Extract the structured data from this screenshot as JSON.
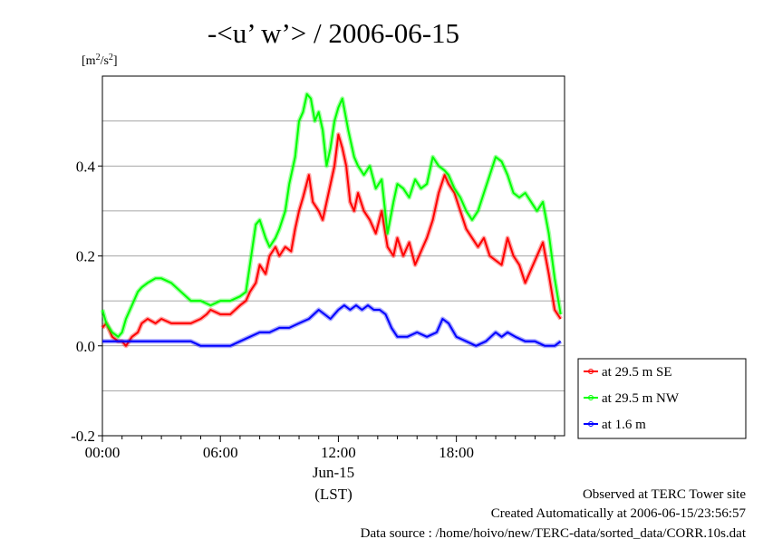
{
  "chart_data": {
    "type": "line",
    "title": "-<u’ w’> / 2006-06-15",
    "ylabel": "[m2/s2]",
    "ylabel_base": "[m",
    "ylabel_exp": "2",
    "ylabel_mid": "/s",
    "ylabel_exp2": "2",
    "ylabel_end": "]",
    "xlabel": "(LST)",
    "x_date_label": "Jun-15",
    "xlim": [
      0,
      23.5
    ],
    "ylim": [
      -0.2,
      0.6
    ],
    "y_ticks": [
      -0.2,
      0.0,
      0.2,
      0.4
    ],
    "y_tick_labels": [
      "-0.2",
      "0.0",
      "0.2",
      "0.4"
    ],
    "y_grid": [
      -0.1,
      0.0,
      0.1,
      0.2,
      0.3,
      0.4,
      0.5
    ],
    "x_ticks": [
      0,
      6,
      12,
      18
    ],
    "x_tick_labels": [
      "00:00",
      "06:00",
      "12:00",
      "18:00"
    ],
    "grid": true,
    "legend_position": "bottom-right outside",
    "series": [
      {
        "name": "at 29.5 m SE",
        "color": "#ff0000",
        "x": [
          0.0,
          0.2,
          0.5,
          0.8,
          1.0,
          1.2,
          1.5,
          1.8,
          2.0,
          2.3,
          2.7,
          3.0,
          3.5,
          4.0,
          4.5,
          5.0,
          5.3,
          5.5,
          6.0,
          6.5,
          7.0,
          7.3,
          7.5,
          7.8,
          8.0,
          8.3,
          8.5,
          8.8,
          9.0,
          9.3,
          9.6,
          9.8,
          10.0,
          10.2,
          10.5,
          10.7,
          11.0,
          11.2,
          11.5,
          11.8,
          12.0,
          12.2,
          12.4,
          12.6,
          12.8,
          13.0,
          13.3,
          13.6,
          13.9,
          14.2,
          14.5,
          14.8,
          15.0,
          15.3,
          15.6,
          15.9,
          16.2,
          16.5,
          16.8,
          17.1,
          17.4,
          17.6,
          17.9,
          18.2,
          18.5,
          18.8,
          19.1,
          19.4,
          19.7,
          20.0,
          20.3,
          20.6,
          20.9,
          21.2,
          21.5,
          21.8,
          22.1,
          22.4,
          22.7,
          23.0,
          23.3
        ],
        "y": [
          0.04,
          0.05,
          0.02,
          0.01,
          0.01,
          0.0,
          0.02,
          0.03,
          0.05,
          0.06,
          0.05,
          0.06,
          0.05,
          0.05,
          0.05,
          0.06,
          0.07,
          0.08,
          0.07,
          0.07,
          0.09,
          0.1,
          0.12,
          0.14,
          0.18,
          0.16,
          0.2,
          0.22,
          0.2,
          0.22,
          0.21,
          0.26,
          0.3,
          0.33,
          0.38,
          0.32,
          0.3,
          0.28,
          0.34,
          0.4,
          0.47,
          0.44,
          0.4,
          0.32,
          0.3,
          0.34,
          0.3,
          0.28,
          0.25,
          0.3,
          0.22,
          0.2,
          0.24,
          0.2,
          0.23,
          0.18,
          0.21,
          0.24,
          0.28,
          0.34,
          0.38,
          0.36,
          0.34,
          0.3,
          0.26,
          0.24,
          0.22,
          0.24,
          0.2,
          0.19,
          0.18,
          0.24,
          0.2,
          0.18,
          0.14,
          0.17,
          0.2,
          0.23,
          0.16,
          0.08,
          0.06
        ]
      },
      {
        "name": "at 29.5 m NW",
        "color": "#00ff00",
        "x": [
          0.0,
          0.2,
          0.5,
          0.8,
          1.0,
          1.2,
          1.5,
          1.8,
          2.0,
          2.3,
          2.7,
          3.0,
          3.5,
          4.0,
          4.5,
          5.0,
          5.5,
          6.0,
          6.5,
          7.0,
          7.3,
          7.5,
          7.8,
          8.0,
          8.3,
          8.5,
          8.8,
          9.0,
          9.3,
          9.5,
          9.8,
          10.0,
          10.2,
          10.4,
          10.6,
          10.8,
          11.0,
          11.2,
          11.4,
          11.6,
          11.8,
          12.0,
          12.2,
          12.5,
          12.8,
          13.0,
          13.3,
          13.6,
          13.9,
          14.2,
          14.5,
          14.8,
          15.0,
          15.3,
          15.6,
          15.9,
          16.2,
          16.5,
          16.8,
          17.1,
          17.4,
          17.6,
          17.9,
          18.2,
          18.5,
          18.8,
          19.1,
          19.4,
          19.7,
          20.0,
          20.3,
          20.6,
          20.9,
          21.2,
          21.5,
          21.8,
          22.1,
          22.4,
          22.7,
          23.0,
          23.3
        ],
        "y": [
          0.08,
          0.05,
          0.03,
          0.02,
          0.03,
          0.06,
          0.09,
          0.12,
          0.13,
          0.14,
          0.15,
          0.15,
          0.14,
          0.12,
          0.1,
          0.1,
          0.09,
          0.1,
          0.1,
          0.11,
          0.12,
          0.18,
          0.27,
          0.28,
          0.24,
          0.22,
          0.24,
          0.26,
          0.3,
          0.36,
          0.42,
          0.5,
          0.52,
          0.56,
          0.55,
          0.5,
          0.52,
          0.48,
          0.4,
          0.44,
          0.5,
          0.53,
          0.55,
          0.48,
          0.42,
          0.4,
          0.38,
          0.4,
          0.35,
          0.37,
          0.25,
          0.32,
          0.36,
          0.35,
          0.33,
          0.37,
          0.35,
          0.36,
          0.42,
          0.4,
          0.39,
          0.38,
          0.35,
          0.33,
          0.3,
          0.28,
          0.3,
          0.34,
          0.38,
          0.42,
          0.41,
          0.38,
          0.34,
          0.33,
          0.34,
          0.32,
          0.3,
          0.32,
          0.25,
          0.15,
          0.07
        ]
      },
      {
        "name": "at 1.6 m",
        "color": "#0000ff",
        "x": [
          0.0,
          0.5,
          1.0,
          1.5,
          2.0,
          2.5,
          3.0,
          3.5,
          4.0,
          4.5,
          5.0,
          5.5,
          6.0,
          6.5,
          7.0,
          7.5,
          8.0,
          8.5,
          9.0,
          9.5,
          10.0,
          10.5,
          11.0,
          11.3,
          11.6,
          12.0,
          12.3,
          12.6,
          12.9,
          13.2,
          13.5,
          13.8,
          14.1,
          14.4,
          14.7,
          15.0,
          15.5,
          16.0,
          16.5,
          17.0,
          17.3,
          17.6,
          18.0,
          18.5,
          19.0,
          19.5,
          20.0,
          20.3,
          20.6,
          21.0,
          21.5,
          22.0,
          22.5,
          23.0,
          23.3
        ],
        "y": [
          0.01,
          0.01,
          0.01,
          0.01,
          0.01,
          0.01,
          0.01,
          0.01,
          0.01,
          0.01,
          0.0,
          0.0,
          0.0,
          0.0,
          0.01,
          0.02,
          0.03,
          0.03,
          0.04,
          0.04,
          0.05,
          0.06,
          0.08,
          0.07,
          0.06,
          0.08,
          0.09,
          0.08,
          0.09,
          0.08,
          0.09,
          0.08,
          0.08,
          0.07,
          0.04,
          0.02,
          0.02,
          0.03,
          0.02,
          0.03,
          0.06,
          0.05,
          0.02,
          0.01,
          0.0,
          0.01,
          0.03,
          0.02,
          0.03,
          0.02,
          0.01,
          0.01,
          0.0,
          0.0,
          0.01
        ]
      }
    ]
  },
  "footer": {
    "line1": "Observed at TERC Tower site",
    "line2": "Created Automatically at 2006-06-15/23:56:57",
    "line3": "Data source : /home/hoivo/new/TERC-data/sorted_data/CORR.10s.dat"
  }
}
